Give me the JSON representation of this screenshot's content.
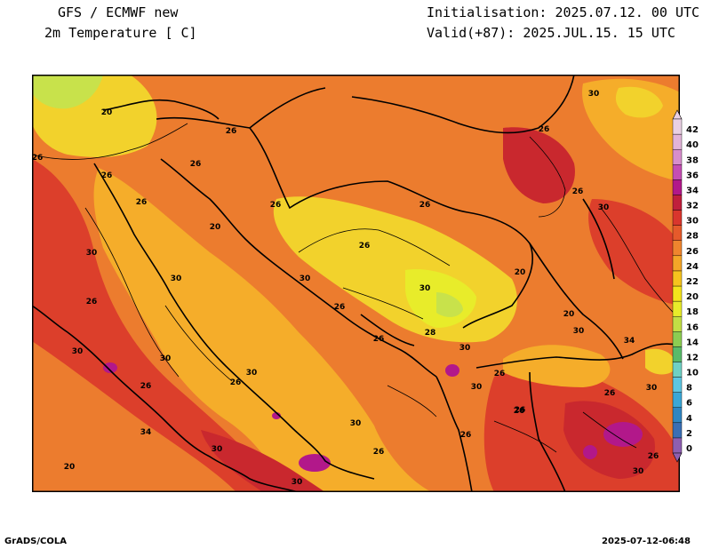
{
  "header": {
    "title_line1": "GFS / ECMWF new",
    "title_line2": "2m Temperature [ C]",
    "init_line": "Initialisation: 2025.07.12. 00 UTC",
    "valid_line": "Valid(+87): 2025.JUL.15. 15 UTC"
  },
  "footer": {
    "left": "GrADS/COLA",
    "right": "2025-07-12-06:48"
  },
  "colorbar": {
    "levels": [
      "0",
      "2",
      "4",
      "6",
      "8",
      "10",
      "12",
      "14",
      "16",
      "18",
      "20",
      "22",
      "24",
      "26",
      "28",
      "30",
      "32",
      "34",
      "36",
      "38",
      "40",
      "42"
    ],
    "colors": [
      "#8e5fb0",
      "#3a6fb4",
      "#2f86c2",
      "#3ba7d6",
      "#5ec6e2",
      "#6fd0c4",
      "#59bb6a",
      "#8ccd52",
      "#c2df45",
      "#e8ec2a",
      "#f4e31c",
      "#f6c31e",
      "#f4a528",
      "#ef852e",
      "#e55a2b",
      "#d9362d",
      "#c01f3c",
      "#b2188a",
      "#c54eb3",
      "#d78ecc",
      "#e2b4d8",
      "#e9d0e3"
    ]
  },
  "palette": {
    "sea": "#f5ad2a",
    "land_base": "#ec7c2e",
    "hot": "#dc3f2b",
    "hotter": "#c9282e",
    "cool": "#f2d22c",
    "cooler": "#e8ec2a",
    "green": "#c8e24b",
    "magenta": "#b2188a",
    "lines": "#000000"
  },
  "contour_labels": [
    "20",
    "26",
    "26",
    "26",
    "26",
    "26",
    "20",
    "26",
    "26",
    "26",
    "30",
    "26",
    "30",
    "30",
    "30",
    "26",
    "30",
    "26",
    "30",
    "30",
    "26",
    "26",
    "30",
    "26",
    "28",
    "30",
    "30",
    "26",
    "20",
    "20",
    "30",
    "26",
    "30",
    "30",
    "26",
    "30",
    "26",
    "34",
    "34",
    "30",
    "30",
    "26",
    "26",
    "26",
    "30",
    "26",
    "20"
  ]
}
